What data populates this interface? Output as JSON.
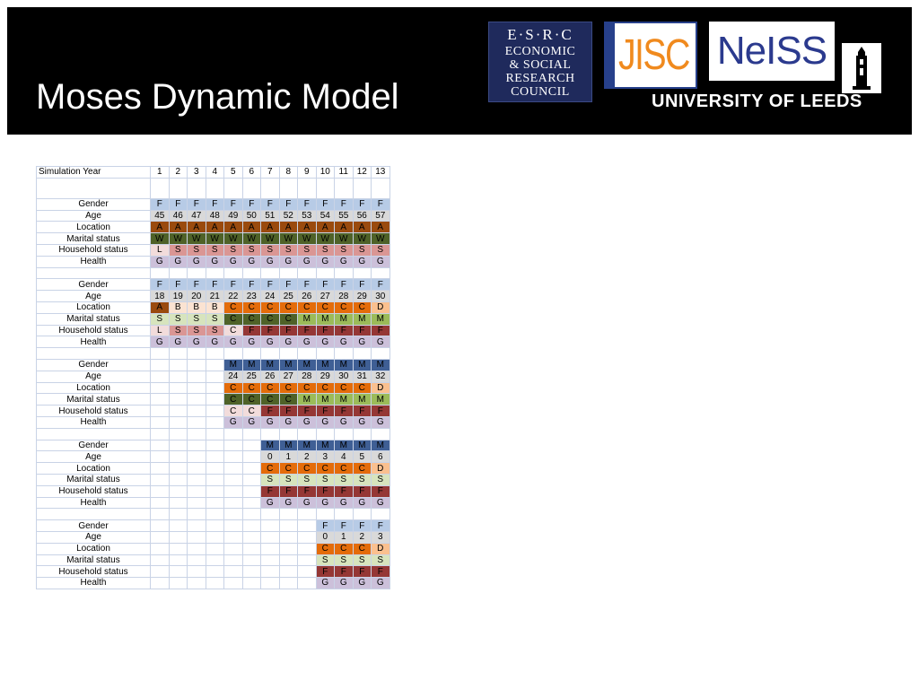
{
  "title": "Moses Dynamic Model",
  "logos": {
    "esrc": [
      "E·S·R·C",
      "ECONOMIC",
      "& SOCIAL",
      "RESEARCH",
      "COUNCIL"
    ],
    "jisc": "JISC",
    "neiss": "NeISS",
    "leeds": "UNIVERSITY OF LEEDS"
  },
  "colors": {
    "F_gender": "#b7cbe6",
    "M_gender": "#3f5f95",
    "age_band": "#d9d9d9",
    "loc_A": "#9a4a0e",
    "loc_B": "#fbe3d2",
    "loc_C": "#e46c0a",
    "loc_D": "#fac08f",
    "W": "#4f6228",
    "S": "#d7e4bd",
    "C_marital": "#4f6228",
    "M_marital": "#9bbb59",
    "L": "#f2dcdb",
    "S_house": "#da9694",
    "C_house": "#f2dcdb",
    "F_house": "#953735",
    "G": "#ccc0da"
  },
  "table": {
    "header_label": "Simulation Year",
    "years": [
      "1",
      "2",
      "3",
      "4",
      "5",
      "6",
      "7",
      "8",
      "9",
      "10",
      "11",
      "12",
      "13"
    ],
    "groups": [
      {
        "rows": [
          {
            "label": "Gender",
            "type": "gender",
            "values": [
              "F",
              "F",
              "F",
              "F",
              "F",
              "F",
              "F",
              "F",
              "F",
              "F",
              "F",
              "F",
              "F"
            ]
          },
          {
            "label": "Age",
            "type": "age",
            "values": [
              "45",
              "46",
              "47",
              "48",
              "49",
              "50",
              "51",
              "52",
              "53",
              "54",
              "55",
              "56",
              "57"
            ]
          },
          {
            "label": "Location",
            "type": "location",
            "values": [
              "A",
              "A",
              "A",
              "A",
              "A",
              "A",
              "A",
              "A",
              "A",
              "A",
              "A",
              "A",
              "A"
            ]
          },
          {
            "label": "Marital status",
            "type": "marital",
            "values": [
              "W",
              "W",
              "W",
              "W",
              "W",
              "W",
              "W",
              "W",
              "W",
              "W",
              "W",
              "W",
              "W"
            ]
          },
          {
            "label": "Household status",
            "type": "household",
            "values": [
              "L",
              "S",
              "S",
              "S",
              "S",
              "S",
              "S",
              "S",
              "S",
              "S",
              "S",
              "S",
              "S"
            ]
          },
          {
            "label": "Health",
            "type": "health",
            "values": [
              "G",
              "G",
              "G",
              "G",
              "G",
              "G",
              "G",
              "G",
              "G",
              "G",
              "G",
              "G",
              "G"
            ]
          }
        ]
      },
      {
        "rows": [
          {
            "label": "Gender",
            "type": "gender",
            "values": [
              "F",
              "F",
              "F",
              "F",
              "F",
              "F",
              "F",
              "F",
              "F",
              "F",
              "F",
              "F",
              "F"
            ]
          },
          {
            "label": "Age",
            "type": "age",
            "values": [
              "18",
              "19",
              "20",
              "21",
              "22",
              "23",
              "24",
              "25",
              "26",
              "27",
              "28",
              "29",
              "30"
            ]
          },
          {
            "label": "Location",
            "type": "location",
            "values": [
              "A",
              "B",
              "B",
              "B",
              "C",
              "C",
              "C",
              "C",
              "C",
              "C",
              "C",
              "C",
              "D"
            ]
          },
          {
            "label": "Marital status",
            "type": "marital",
            "values": [
              "S",
              "S",
              "S",
              "S",
              "C",
              "C",
              "C",
              "C",
              "M",
              "M",
              "M",
              "M",
              "M"
            ]
          },
          {
            "label": "Household status",
            "type": "household",
            "values": [
              "L",
              "S",
              "S",
              "S",
              "C",
              "F",
              "F",
              "F",
              "F",
              "F",
              "F",
              "F",
              "F"
            ]
          },
          {
            "label": "Health",
            "type": "health",
            "values": [
              "G",
              "G",
              "G",
              "G",
              "G",
              "G",
              "G",
              "G",
              "G",
              "G",
              "G",
              "G",
              "G"
            ]
          }
        ]
      },
      {
        "rows": [
          {
            "label": "Gender",
            "type": "gender",
            "values": [
              "",
              "",
              "",
              "",
              "M",
              "M",
              "M",
              "M",
              "M",
              "M",
              "M",
              "M",
              "M"
            ]
          },
          {
            "label": "Age",
            "type": "age",
            "values": [
              "",
              "",
              "",
              "",
              "24",
              "25",
              "26",
              "27",
              "28",
              "29",
              "30",
              "31",
              "32"
            ]
          },
          {
            "label": "Location",
            "type": "location",
            "values": [
              "",
              "",
              "",
              "",
              "C",
              "C",
              "C",
              "C",
              "C",
              "C",
              "C",
              "C",
              "D"
            ]
          },
          {
            "label": "Marital status",
            "type": "marital",
            "values": [
              "",
              "",
              "",
              "",
              "C",
              "C",
              "C",
              "C",
              "M",
              "M",
              "M",
              "M",
              "M"
            ]
          },
          {
            "label": "Household status",
            "type": "household",
            "values": [
              "",
              "",
              "",
              "",
              "C",
              "C",
              "F",
              "F",
              "F",
              "F",
              "F",
              "F",
              "F"
            ]
          },
          {
            "label": "Health",
            "type": "health",
            "values": [
              "",
              "",
              "",
              "",
              "G",
              "G",
              "G",
              "G",
              "G",
              "G",
              "G",
              "G",
              "G"
            ]
          }
        ]
      },
      {
        "rows": [
          {
            "label": "Gender",
            "type": "gender",
            "values": [
              "",
              "",
              "",
              "",
              "",
              "",
              "M",
              "M",
              "M",
              "M",
              "M",
              "M",
              "M"
            ]
          },
          {
            "label": "Age",
            "type": "age",
            "values": [
              "",
              "",
              "",
              "",
              "",
              "",
              "0",
              "1",
              "2",
              "3",
              "4",
              "5",
              "6"
            ]
          },
          {
            "label": "Location",
            "type": "location",
            "values": [
              "",
              "",
              "",
              "",
              "",
              "",
              "C",
              "C",
              "C",
              "C",
              "C",
              "C",
              "D"
            ]
          },
          {
            "label": "Marital status",
            "type": "marital",
            "values": [
              "",
              "",
              "",
              "",
              "",
              "",
              "S",
              "S",
              "S",
              "S",
              "S",
              "S",
              "S"
            ]
          },
          {
            "label": "Household status",
            "type": "household",
            "values": [
              "",
              "",
              "",
              "",
              "",
              "",
              "F",
              "F",
              "F",
              "F",
              "F",
              "F",
              "F"
            ]
          },
          {
            "label": "Health",
            "type": "health",
            "values": [
              "",
              "",
              "",
              "",
              "",
              "",
              "G",
              "G",
              "G",
              "G",
              "G",
              "G",
              "G"
            ]
          }
        ]
      },
      {
        "rows": [
          {
            "label": "Gender",
            "type": "gender",
            "values": [
              "",
              "",
              "",
              "",
              "",
              "",
              "",
              "",
              "",
              "F",
              "F",
              "F",
              "F"
            ]
          },
          {
            "label": "Age",
            "type": "age",
            "values": [
              "",
              "",
              "",
              "",
              "",
              "",
              "",
              "",
              "",
              "0",
              "1",
              "2",
              "3"
            ]
          },
          {
            "label": "Location",
            "type": "location",
            "values": [
              "",
              "",
              "",
              "",
              "",
              "",
              "",
              "",
              "",
              "C",
              "C",
              "C",
              "D"
            ]
          },
          {
            "label": "Marital status",
            "type": "marital",
            "values": [
              "",
              "",
              "",
              "",
              "",
              "",
              "",
              "",
              "",
              "S",
              "S",
              "S",
              "S"
            ]
          },
          {
            "label": "Household status",
            "type": "household",
            "values": [
              "",
              "",
              "",
              "",
              "",
              "",
              "",
              "",
              "",
              "F",
              "F",
              "F",
              "F"
            ]
          },
          {
            "label": "Health",
            "type": "health",
            "values": [
              "",
              "",
              "",
              "",
              "",
              "",
              "",
              "",
              "",
              "G",
              "G",
              "G",
              "G"
            ]
          }
        ]
      }
    ]
  }
}
